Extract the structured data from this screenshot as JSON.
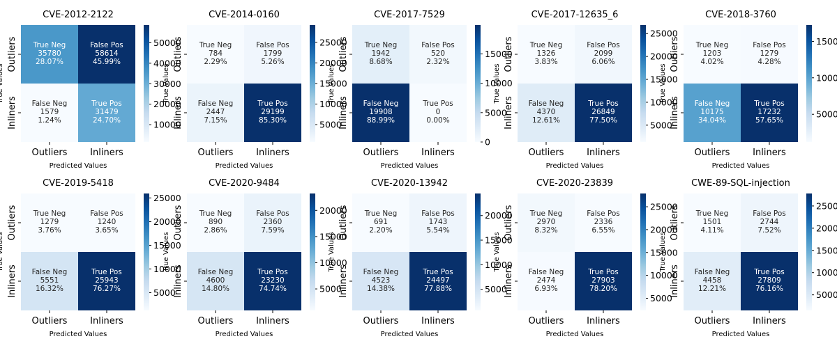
{
  "chart_data": [
    {
      "type": "heatmap",
      "title": "CVE-2012-2122",
      "xlabel": "Predicted Values",
      "ylabel": "True Values",
      "x_categories": [
        "Outliers",
        "Inliners"
      ],
      "y_categories": [
        "Outliers",
        "Inliners"
      ],
      "cells": [
        [
          {
            "label": "True Neg",
            "count": "35780",
            "percent": "28.07%"
          },
          {
            "label": "False Pos",
            "count": "58614",
            "percent": "45.99%"
          }
        ],
        [
          {
            "label": "False Neg",
            "count": "1579",
            "percent": "1.24%"
          },
          {
            "label": "True Pos",
            "count": "31479",
            "percent": "24.70%"
          }
        ]
      ],
      "values": [
        [
          35780,
          58614
        ],
        [
          1579,
          31479
        ]
      ],
      "colorbar_ticks": [
        10000,
        20000,
        30000,
        40000,
        50000
      ]
    },
    {
      "type": "heatmap",
      "title": "CVE-2014-0160",
      "xlabel": "Predicted Values",
      "ylabel": "True Values",
      "x_categories": [
        "Outliers",
        "Inliners"
      ],
      "y_categories": [
        "Outliers",
        "Inliners"
      ],
      "cells": [
        [
          {
            "label": "True Neg",
            "count": "784",
            "percent": "2.29%"
          },
          {
            "label": "False Pos",
            "count": "1799",
            "percent": "5.26%"
          }
        ],
        [
          {
            "label": "False Neg",
            "count": "2447",
            "percent": "7.15%"
          },
          {
            "label": "True Pos",
            "count": "29199",
            "percent": "85.30%"
          }
        ]
      ],
      "values": [
        [
          784,
          1799
        ],
        [
          2447,
          29199
        ]
      ],
      "colorbar_ticks": [
        5000,
        10000,
        15000,
        20000,
        25000
      ]
    },
    {
      "type": "heatmap",
      "title": "CVE-2017-7529",
      "xlabel": "Predicted Values",
      "ylabel": "True Values",
      "x_categories": [
        "Outliers",
        "Inliners"
      ],
      "y_categories": [
        "Outliers",
        "Inliners"
      ],
      "cells": [
        [
          {
            "label": "True Neg",
            "count": "1942",
            "percent": "8.68%"
          },
          {
            "label": "False Pos",
            "count": "520",
            "percent": "2.32%"
          }
        ],
        [
          {
            "label": "False Neg",
            "count": "19908",
            "percent": "88.99%"
          },
          {
            "label": "True Pos",
            "count": "0",
            "percent": "0.00%"
          }
        ]
      ],
      "values": [
        [
          1942,
          520
        ],
        [
          19908,
          0
        ]
      ],
      "colorbar_ticks": [
        0,
        5000,
        10000,
        15000
      ]
    },
    {
      "type": "heatmap",
      "title": "CVE-2017-12635_6",
      "xlabel": "Predicted Values",
      "ylabel": "True Values",
      "x_categories": [
        "Outliers",
        "Inliners"
      ],
      "y_categories": [
        "Outliers",
        "Inliners"
      ],
      "cells": [
        [
          {
            "label": "True Neg",
            "count": "1326",
            "percent": "3.83%"
          },
          {
            "label": "False Pos",
            "count": "2099",
            "percent": "6.06%"
          }
        ],
        [
          {
            "label": "False Neg",
            "count": "4370",
            "percent": "12.61%"
          },
          {
            "label": "True Pos",
            "count": "26849",
            "percent": "77.50%"
          }
        ]
      ],
      "values": [
        [
          1326,
          2099
        ],
        [
          4370,
          26849
        ]
      ],
      "colorbar_ticks": [
        5000,
        10000,
        15000,
        20000,
        25000
      ]
    },
    {
      "type": "heatmap",
      "title": "CVE-2018-3760",
      "xlabel": "Predicted Values",
      "ylabel": "True Values",
      "x_categories": [
        "Outliers",
        "Inliners"
      ],
      "y_categories": [
        "Outliers",
        "Inliners"
      ],
      "cells": [
        [
          {
            "label": "True Neg",
            "count": "1203",
            "percent": "4.02%"
          },
          {
            "label": "False Pos",
            "count": "1279",
            "percent": "4.28%"
          }
        ],
        [
          {
            "label": "False Neg",
            "count": "10175",
            "percent": "34.04%"
          },
          {
            "label": "True Pos",
            "count": "17232",
            "percent": "57.65%"
          }
        ]
      ],
      "values": [
        [
          1203,
          1279
        ],
        [
          10175,
          17232
        ]
      ],
      "colorbar_ticks": [
        5000,
        10000,
        15000
      ]
    },
    {
      "type": "heatmap",
      "title": "CVE-2019-5418",
      "xlabel": "Predicted Values",
      "ylabel": "True Values",
      "x_categories": [
        "Outliers",
        "Inliners"
      ],
      "y_categories": [
        "Outliers",
        "Inliners"
      ],
      "cells": [
        [
          {
            "label": "True Neg",
            "count": "1279",
            "percent": "3.76%"
          },
          {
            "label": "False Pos",
            "count": "1240",
            "percent": "3.65%"
          }
        ],
        [
          {
            "label": "False Neg",
            "count": "5551",
            "percent": "16.32%"
          },
          {
            "label": "True Pos",
            "count": "25943",
            "percent": "76.27%"
          }
        ]
      ],
      "values": [
        [
          1279,
          1240
        ],
        [
          5551,
          25943
        ]
      ],
      "colorbar_ticks": [
        5000,
        10000,
        15000,
        20000,
        25000
      ]
    },
    {
      "type": "heatmap",
      "title": "CVE-2020-9484",
      "xlabel": "Predicted Values",
      "ylabel": "True Values",
      "x_categories": [
        "Outliers",
        "Inliners"
      ],
      "y_categories": [
        "Outliers",
        "Inliners"
      ],
      "cells": [
        [
          {
            "label": "True Neg",
            "count": "890",
            "percent": "2.86%"
          },
          {
            "label": "False Pos",
            "count": "2360",
            "percent": "7.59%"
          }
        ],
        [
          {
            "label": "False Neg",
            "count": "4600",
            "percent": "14.80%"
          },
          {
            "label": "True Pos",
            "count": "23230",
            "percent": "74.74%"
          }
        ]
      ],
      "values": [
        [
          890,
          2360
        ],
        [
          4600,
          23230
        ]
      ],
      "colorbar_ticks": [
        5000,
        10000,
        15000,
        20000
      ]
    },
    {
      "type": "heatmap",
      "title": "CVE-2020-13942",
      "xlabel": "Predicted Values",
      "ylabel": "True Values",
      "x_categories": [
        "Outliers",
        "Inliners"
      ],
      "y_categories": [
        "Outliers",
        "Inliners"
      ],
      "cells": [
        [
          {
            "label": "True Neg",
            "count": "691",
            "percent": "2.20%"
          },
          {
            "label": "False Pos",
            "count": "1743",
            "percent": "5.54%"
          }
        ],
        [
          {
            "label": "False Neg",
            "count": "4523",
            "percent": "14.38%"
          },
          {
            "label": "True Pos",
            "count": "24497",
            "percent": "77.88%"
          }
        ]
      ],
      "values": [
        [
          691,
          1743
        ],
        [
          4523,
          24497
        ]
      ],
      "colorbar_ticks": [
        5000,
        10000,
        15000,
        20000
      ]
    },
    {
      "type": "heatmap",
      "title": "CVE-2020-23839",
      "xlabel": "Predicted Values",
      "ylabel": "True Values",
      "x_categories": [
        "Outliers",
        "Inliners"
      ],
      "y_categories": [
        "Outliers",
        "Inliners"
      ],
      "cells": [
        [
          {
            "label": "True Neg",
            "count": "2970",
            "percent": "8.32%"
          },
          {
            "label": "False Pos",
            "count": "2336",
            "percent": "6.55%"
          }
        ],
        [
          {
            "label": "False Neg",
            "count": "2474",
            "percent": "6.93%"
          },
          {
            "label": "True Pos",
            "count": "27903",
            "percent": "78.20%"
          }
        ]
      ],
      "values": [
        [
          2970,
          2336
        ],
        [
          2474,
          27903
        ]
      ],
      "colorbar_ticks": [
        5000,
        10000,
        15000,
        20000,
        25000
      ]
    },
    {
      "type": "heatmap",
      "title": "CWE-89-SQL-injection",
      "xlabel": "Predicted Values",
      "ylabel": "True Values",
      "x_categories": [
        "Outliers",
        "Inliners"
      ],
      "y_categories": [
        "Outliers",
        "Inliners"
      ],
      "cells": [
        [
          {
            "label": "True Neg",
            "count": "1501",
            "percent": "4.11%"
          },
          {
            "label": "False Pos",
            "count": "2744",
            "percent": "7.52%"
          }
        ],
        [
          {
            "label": "False Neg",
            "count": "4458",
            "percent": "12.21%"
          },
          {
            "label": "True Pos",
            "count": "27809",
            "percent": "76.16%"
          }
        ]
      ],
      "values": [
        [
          1501,
          2744
        ],
        [
          4458,
          27809
        ]
      ],
      "colorbar_ticks": [
        5000,
        10000,
        15000,
        20000,
        25000
      ]
    }
  ],
  "colormap": [
    "#f7fbff",
    "#deebf7",
    "#c6dbef",
    "#9ecae1",
    "#6baed6",
    "#4292c6",
    "#2171b5",
    "#08519c",
    "#08306b"
  ]
}
